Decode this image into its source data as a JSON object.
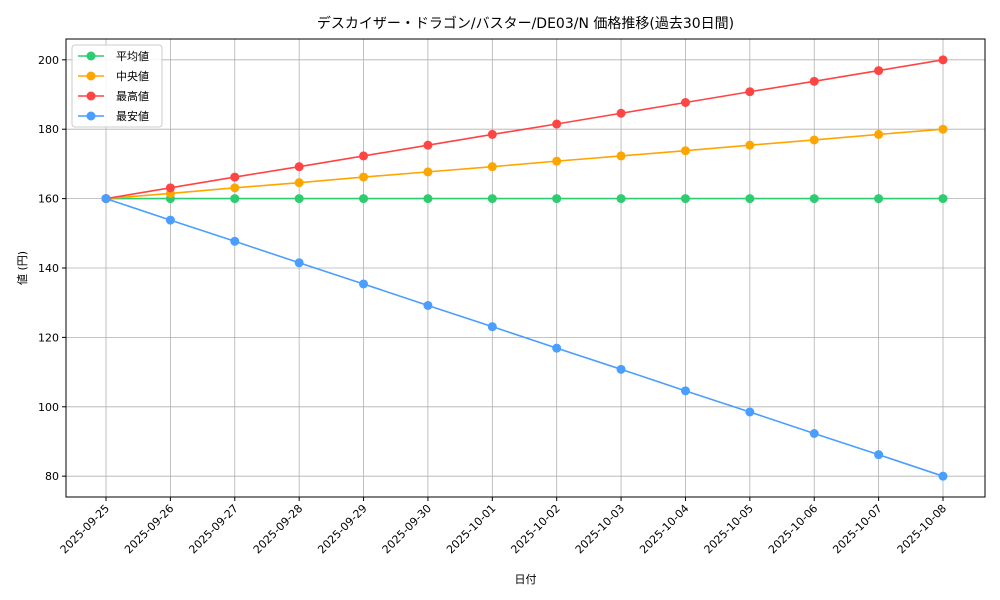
{
  "chart_data": {
    "type": "line",
    "title": "デスカイザー・ドラゴン/バスター/DE03/N 価格推移(過去30日間)",
    "xlabel": "日付",
    "ylabel": "値 (円)",
    "ylim": [
      74,
      206
    ],
    "yticks": [
      80,
      100,
      120,
      140,
      160,
      180,
      200
    ],
    "grid": true,
    "legend_position": "top-left",
    "x": [
      "2025-09-25",
      "2025-09-26",
      "2025-09-27",
      "2025-09-28",
      "2025-09-29",
      "2025-09-30",
      "2025-10-01",
      "2025-10-02",
      "2025-10-03",
      "2025-10-04",
      "2025-10-05",
      "2025-10-06",
      "2025-10-07",
      "2025-10-08"
    ],
    "series": [
      {
        "name": "平均値",
        "color": "#2ecc71",
        "values": [
          160,
          160,
          160,
          160,
          160,
          160,
          160,
          160,
          160,
          160,
          160,
          160,
          160,
          160
        ]
      },
      {
        "name": "中央値",
        "color": "#ffa500",
        "values": [
          160,
          161.5,
          163.1,
          164.6,
          166.2,
          167.7,
          169.2,
          170.8,
          172.3,
          173.8,
          175.4,
          176.9,
          178.5,
          180
        ]
      },
      {
        "name": "最高値",
        "color": "#ff4444",
        "values": [
          160,
          163.1,
          166.2,
          169.2,
          172.3,
          175.4,
          178.5,
          181.5,
          184.6,
          187.7,
          190.8,
          193.8,
          196.9,
          200
        ]
      },
      {
        "name": "最安値",
        "color": "#4a9eff",
        "values": [
          160,
          153.8,
          147.7,
          141.5,
          135.4,
          129.2,
          123.1,
          116.9,
          110.8,
          104.6,
          98.5,
          92.3,
          86.2,
          80
        ]
      }
    ]
  }
}
